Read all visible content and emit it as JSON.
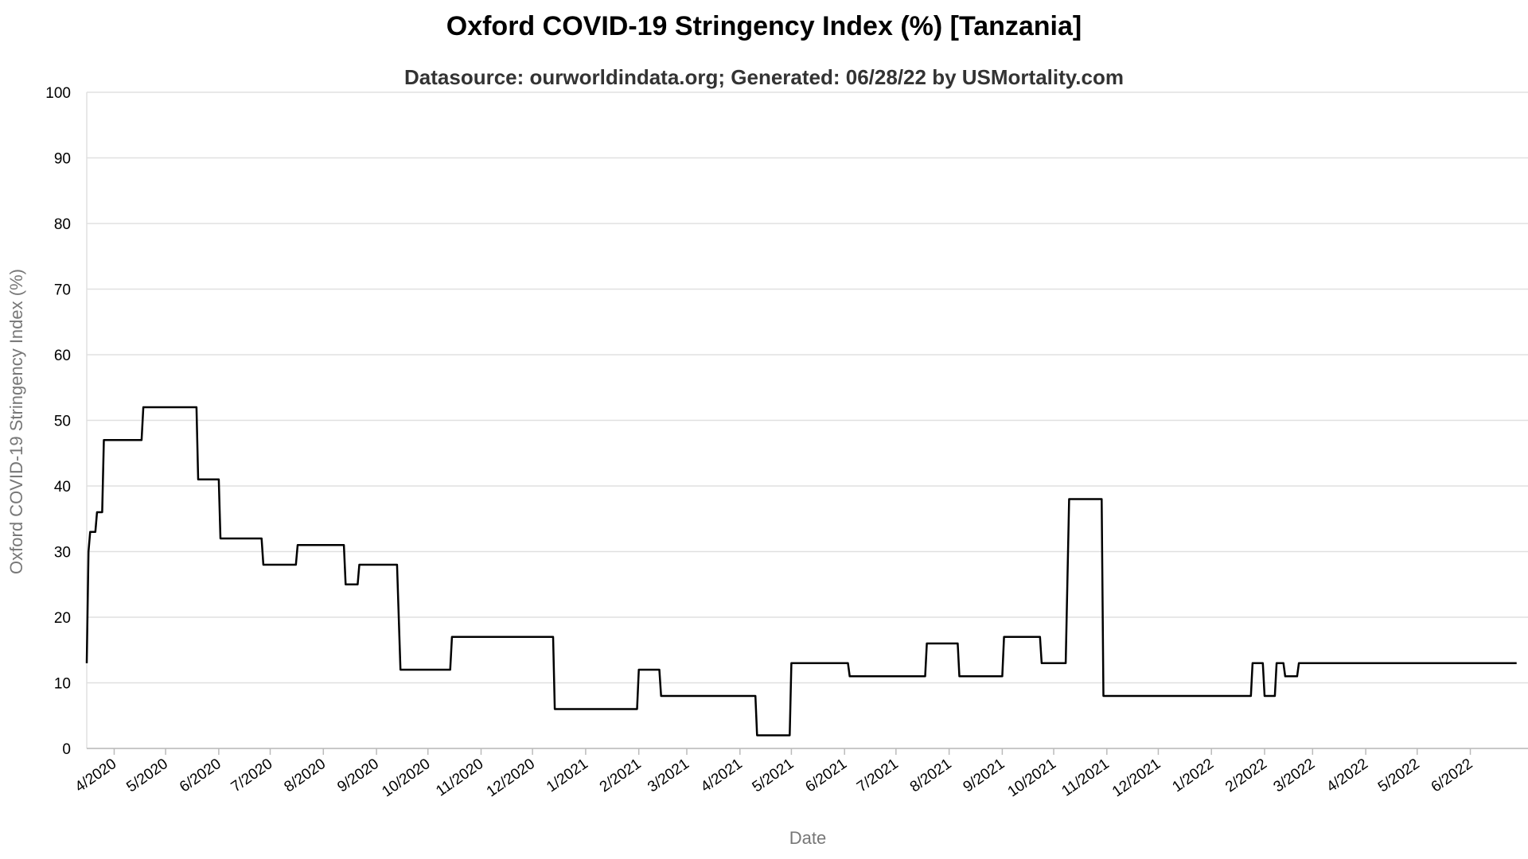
{
  "chart_data": {
    "type": "line",
    "title": "Oxford COVID-19 Stringency Index (%) [Tanzania]",
    "subtitle": "Datasource: ourworldindata.org; Generated: 06/28/22 by USMortality.com",
    "xlabel": "Date",
    "ylabel": "Oxford COVID-19 Stringency Index (%)",
    "ylim": [
      0,
      100
    ],
    "yticks": [
      0,
      10,
      20,
      30,
      40,
      50,
      60,
      70,
      80,
      90,
      100
    ],
    "xlim": [
      "2020-03-16",
      "2022-06-28"
    ],
    "xticks": [
      {
        "date": "2020-04-01",
        "label": "4/2020"
      },
      {
        "date": "2020-05-01",
        "label": "5/2020"
      },
      {
        "date": "2020-06-01",
        "label": "6/2020"
      },
      {
        "date": "2020-07-01",
        "label": "7/2020"
      },
      {
        "date": "2020-08-01",
        "label": "8/2020"
      },
      {
        "date": "2020-09-01",
        "label": "9/2020"
      },
      {
        "date": "2020-10-01",
        "label": "10/2020"
      },
      {
        "date": "2020-11-01",
        "label": "11/2020"
      },
      {
        "date": "2020-12-01",
        "label": "12/2020"
      },
      {
        "date": "2021-01-01",
        "label": "1/2021"
      },
      {
        "date": "2021-02-01",
        "label": "2/2021"
      },
      {
        "date": "2021-03-01",
        "label": "3/2021"
      },
      {
        "date": "2021-04-01",
        "label": "4/2021"
      },
      {
        "date": "2021-05-01",
        "label": "5/2021"
      },
      {
        "date": "2021-06-01",
        "label": "6/2021"
      },
      {
        "date": "2021-07-01",
        "label": "7/2021"
      },
      {
        "date": "2021-08-01",
        "label": "8/2021"
      },
      {
        "date": "2021-09-01",
        "label": "9/2021"
      },
      {
        "date": "2021-10-01",
        "label": "10/2021"
      },
      {
        "date": "2021-11-01",
        "label": "11/2021"
      },
      {
        "date": "2021-12-01",
        "label": "12/2021"
      },
      {
        "date": "2022-01-01",
        "label": "1/2022"
      },
      {
        "date": "2022-02-01",
        "label": "2/2022"
      },
      {
        "date": "2022-03-01",
        "label": "3/2022"
      },
      {
        "date": "2022-04-01",
        "label": "4/2022"
      },
      {
        "date": "2022-05-01",
        "label": "5/2022"
      },
      {
        "date": "2022-06-01",
        "label": "6/2022"
      }
    ],
    "grid": true,
    "line_color": "#000000",
    "grid_color": "#e0e0e0",
    "series": [
      {
        "name": "",
        "points": [
          [
            "2020-03-16",
            13.0
          ],
          [
            "2020-03-17",
            30.0
          ],
          [
            "2020-03-18",
            33.0
          ],
          [
            "2020-03-21",
            33.0
          ],
          [
            "2020-03-22",
            36.0
          ],
          [
            "2020-03-25",
            36.0
          ],
          [
            "2020-03-26",
            47.0
          ],
          [
            "2020-04-17",
            47.0
          ],
          [
            "2020-04-18",
            52.0
          ],
          [
            "2020-05-19",
            52.0
          ],
          [
            "2020-05-20",
            41.0
          ],
          [
            "2020-06-01",
            41.0
          ],
          [
            "2020-06-02",
            32.0
          ],
          [
            "2020-06-26",
            32.0
          ],
          [
            "2020-06-27",
            28.0
          ],
          [
            "2020-07-16",
            28.0
          ],
          [
            "2020-07-17",
            31.0
          ],
          [
            "2020-08-13",
            31.0
          ],
          [
            "2020-08-14",
            25.0
          ],
          [
            "2020-08-21",
            25.0
          ],
          [
            "2020-08-22",
            28.0
          ],
          [
            "2020-09-13",
            28.0
          ],
          [
            "2020-09-15",
            12.0
          ],
          [
            "2020-10-14",
            12.0
          ],
          [
            "2020-10-15",
            17.0
          ],
          [
            "2020-12-13",
            17.0
          ],
          [
            "2020-12-14",
            6.0
          ],
          [
            "2021-01-31",
            6.0
          ],
          [
            "2021-02-01",
            12.0
          ],
          [
            "2021-02-13",
            12.0
          ],
          [
            "2021-02-14",
            8.0
          ],
          [
            "2021-04-10",
            8.0
          ],
          [
            "2021-04-11",
            2.0
          ],
          [
            "2021-04-30",
            2.0
          ],
          [
            "2021-05-01",
            13.0
          ],
          [
            "2021-06-03",
            13.0
          ],
          [
            "2021-06-04",
            11.0
          ],
          [
            "2021-07-18",
            11.0
          ],
          [
            "2021-07-19",
            16.0
          ],
          [
            "2021-08-06",
            16.0
          ],
          [
            "2021-08-07",
            11.0
          ],
          [
            "2021-09-01",
            11.0
          ],
          [
            "2021-09-02",
            17.0
          ],
          [
            "2021-09-23",
            17.0
          ],
          [
            "2021-09-24",
            13.0
          ],
          [
            "2021-10-08",
            13.0
          ],
          [
            "2021-10-10",
            38.0
          ],
          [
            "2021-10-29",
            38.0
          ],
          [
            "2021-10-30",
            8.0
          ],
          [
            "2022-01-24",
            8.0
          ],
          [
            "2022-01-25",
            13.0
          ],
          [
            "2022-01-31",
            13.0
          ],
          [
            "2022-02-01",
            8.0
          ],
          [
            "2022-02-07",
            8.0
          ],
          [
            "2022-02-08",
            13.0
          ],
          [
            "2022-02-12",
            13.0
          ],
          [
            "2022-02-13",
            11.0
          ],
          [
            "2022-02-20",
            11.0
          ],
          [
            "2022-02-21",
            13.0
          ],
          [
            "2022-06-28",
            13.0
          ]
        ]
      }
    ]
  }
}
